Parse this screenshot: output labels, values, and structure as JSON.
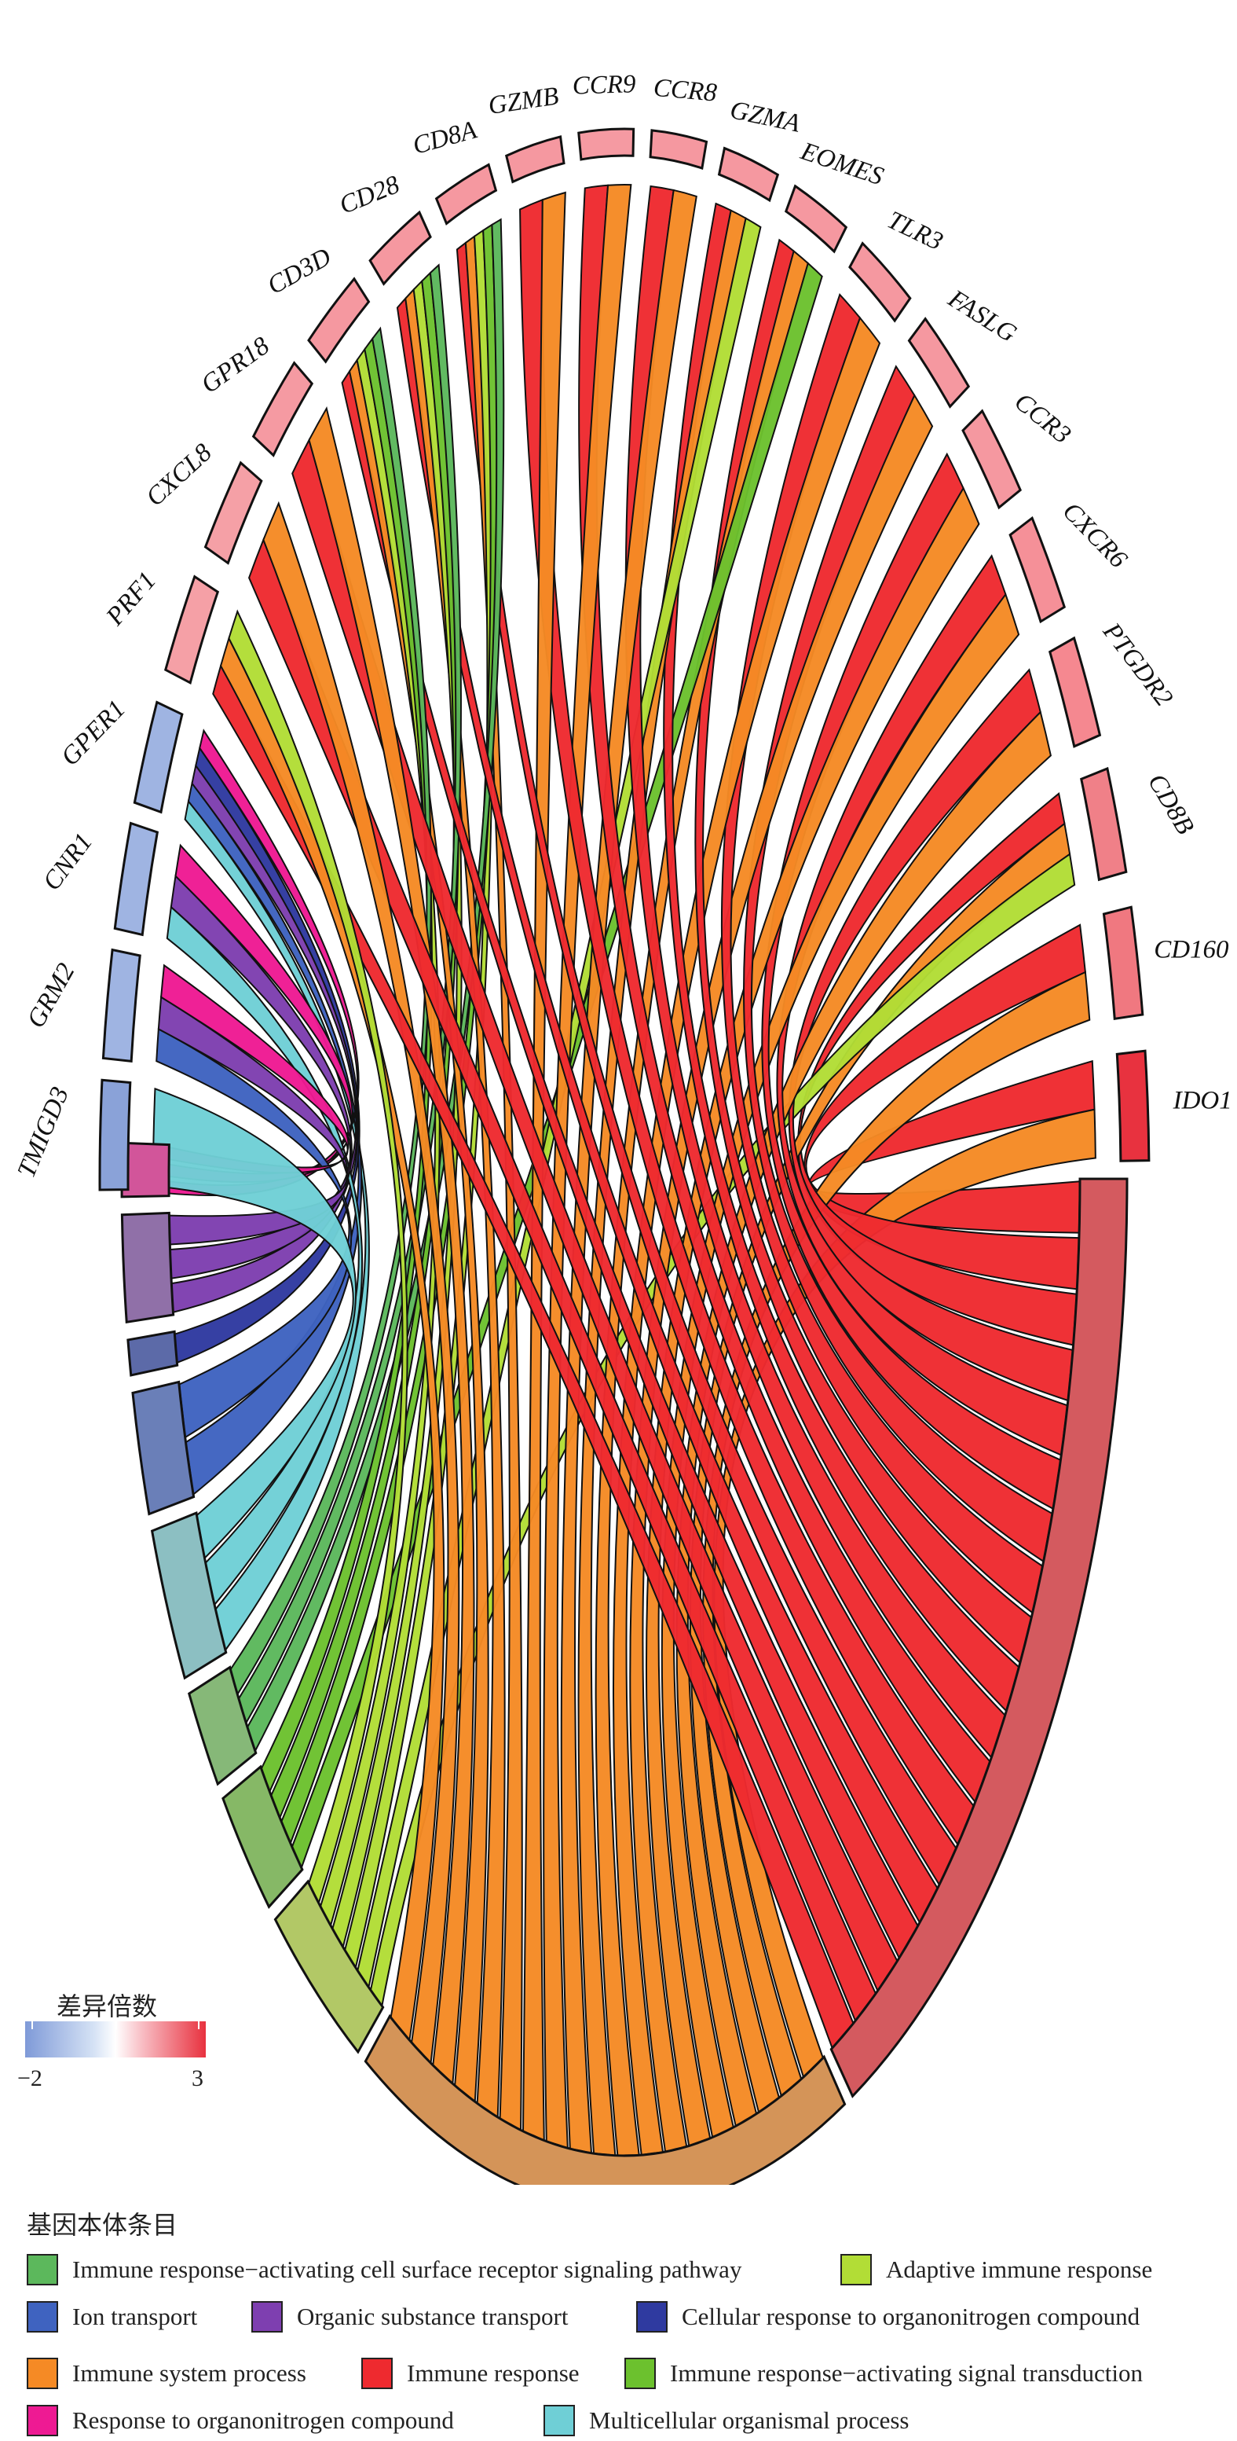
{
  "genes_down": [
    "GPER1",
    "CNR1",
    "GRM2",
    "TMIGD3"
  ],
  "genes_up": [
    "IDO1",
    "CD160",
    "CD8B",
    "PTGDR2",
    "CXCR6",
    "CCR3",
    "FASLG",
    "TLR3",
    "EOMES",
    "GZMA",
    "CCR8",
    "CCR9",
    "GZMB",
    "CD8A",
    "CD28",
    "CD3D",
    "GPR18",
    "CXCL8",
    "PRF1"
  ],
  "scale": {
    "title": "差异倍数",
    "min": "−2",
    "max": "3"
  },
  "legend": {
    "title": "基因本体条目",
    "items": [
      {
        "label": "Immune response−activating cell surface receptor signaling pathway",
        "color": "#5cb85c"
      },
      {
        "label": "Adaptive immune response",
        "color": "#b2dd36"
      },
      {
        "label": "Ion transport",
        "color": "#3f63c0"
      },
      {
        "label": "Organic substance transport",
        "color": "#7e3fb0"
      },
      {
        "label": "Cellular response to organonitrogen compound",
        "color": "#2f3aa0"
      },
      {
        "label": "Immune system process",
        "color": "#f58a25"
      },
      {
        "label": "Immune response",
        "color": "#ee2a2f"
      },
      {
        "label": "Immune response−activating signal transduction",
        "color": "#6cc12e"
      },
      {
        "label": "Response to organonitrogen compound",
        "color": "#ee1a93"
      },
      {
        "label": "Multicellular organismal process",
        "color": "#6fcfd6"
      }
    ]
  }
}
